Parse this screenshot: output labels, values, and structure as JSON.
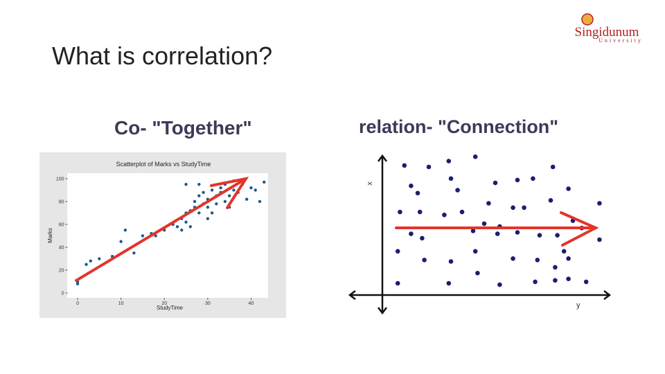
{
  "title": "What is correlation?",
  "logo": {
    "name": "Singidunum",
    "subtitle": "University"
  },
  "headings": [
    "Co- \"Together\"",
    "relation- \"Connection\""
  ],
  "chart_data": [
    {
      "type": "scatter",
      "title": "Scatterplot of Marks vs StudyTime",
      "x_label": "StudyTime",
      "y_label": "Marks",
      "color": "#1f5a8a",
      "xlim": [
        -2,
        44
      ],
      "ylim": [
        -3,
        103
      ],
      "xticks": [
        0,
        10,
        20,
        30,
        40
      ],
      "yticks": [
        0,
        20,
        40,
        60,
        80,
        100
      ],
      "x": [
        0,
        0,
        2,
        3,
        5,
        8,
        10,
        11,
        13,
        15,
        17,
        18,
        20,
        22,
        23,
        24,
        24,
        25,
        25,
        26,
        26,
        27,
        27,
        28,
        28,
        29,
        29,
        30,
        30,
        30,
        31,
        31,
        32,
        32,
        33,
        33,
        34,
        34,
        35,
        35,
        36,
        36,
        37,
        38,
        39,
        40,
        41,
        42,
        43,
        25,
        28
      ],
      "values": [
        8,
        10,
        25,
        28,
        30,
        32,
        45,
        55,
        35,
        50,
        52,
        50,
        55,
        60,
        58,
        65,
        55,
        70,
        62,
        72,
        58,
        75,
        80,
        70,
        85,
        78,
        88,
        65,
        75,
        82,
        90,
        70,
        85,
        78,
        88,
        92,
        80,
        95,
        85,
        75,
        90,
        98,
        88,
        95,
        82,
        92,
        90,
        80,
        97,
        95,
        95
      ]
    },
    {
      "type": "scatter",
      "x_label": "y",
      "y_label": "x",
      "color": "#1a1f6e",
      "xlim": [
        0,
        10
      ],
      "ylim": [
        0,
        10
      ],
      "x": [
        0.9,
        2.0,
        2.9,
        4.1,
        1.2,
        1.5,
        3.0,
        3.3,
        5.0,
        6.0,
        6.7,
        7.6,
        8.3,
        0.7,
        1.6,
        2.7,
        3.5,
        4.7,
        5.8,
        6.3,
        7.5,
        9.7,
        8.5,
        1.2,
        1.7,
        4.0,
        4.5,
        5.1,
        5.2,
        6.0,
        7.0,
        7.8,
        8.9,
        9.7,
        0.6,
        1.8,
        3.0,
        4.1,
        5.8,
        6.9,
        8.1,
        8.3,
        0.6,
        2.9,
        4.2,
        5.2,
        6.8,
        7.7,
        8.3,
        9.1,
        7.7
      ],
      "values": [
        9.1,
        9.0,
        9.4,
        9.7,
        7.7,
        7.2,
        8.2,
        7.4,
        7.9,
        8.1,
        8.2,
        9.0,
        7.5,
        5.9,
        5.9,
        5.7,
        5.9,
        6.5,
        6.2,
        6.2,
        6.7,
        6.5,
        5.3,
        4.4,
        4.1,
        4.6,
        5.1,
        4.4,
        4.9,
        4.5,
        4.3,
        4.3,
        4.8,
        4.0,
        3.2,
        2.6,
        2.5,
        3.2,
        2.7,
        2.6,
        3.2,
        2.7,
        1.0,
        1.0,
        1.7,
        0.9,
        1.1,
        1.2,
        1.3,
        1.1,
        2.1
      ]
    }
  ]
}
